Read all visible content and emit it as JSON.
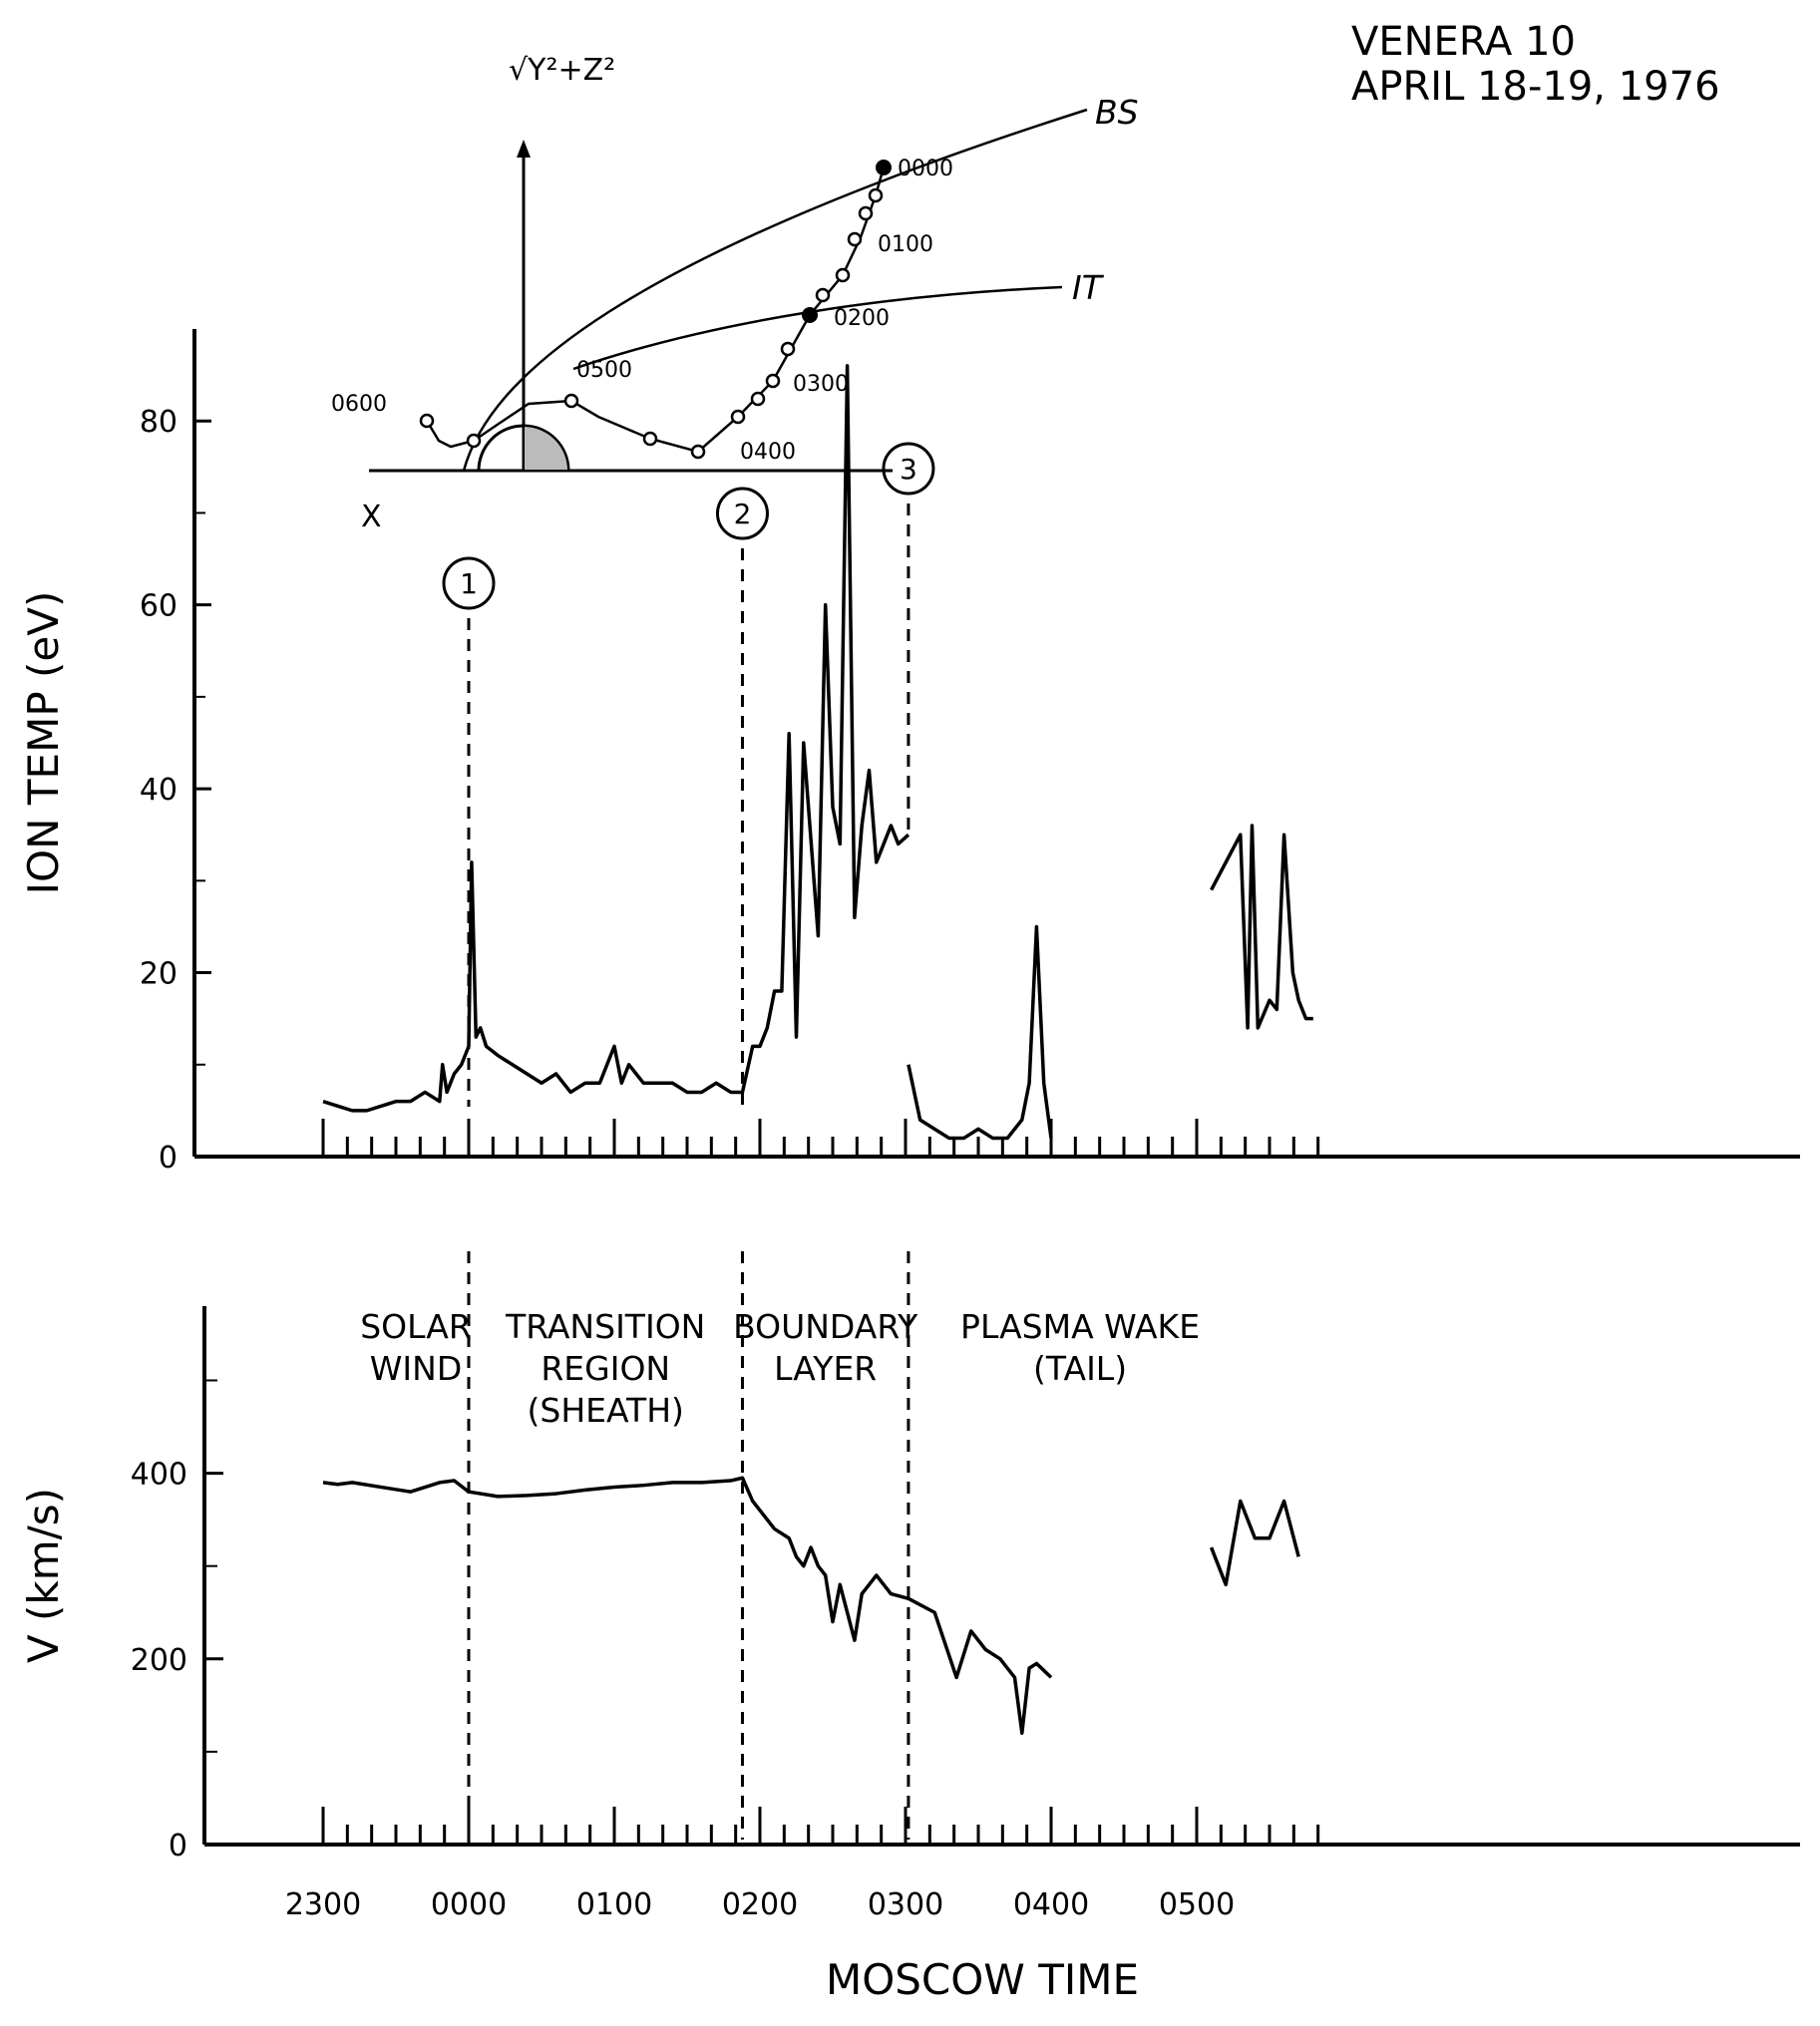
{
  "chart_data": [
    {
      "type": "line",
      "panel": "ion-temperature",
      "title": "VENERA 10",
      "subtitle": "APRIL 18-19, 1976",
      "xlabel": "MOSCOW TIME",
      "ylabel": "ION TEMP (eV)",
      "ylim": [
        0,
        90
      ],
      "yticks": [
        0,
        20,
        40,
        60,
        80
      ],
      "xlim": [
        -1.0,
        6.2
      ],
      "xtick_labels": [
        "2300",
        "0000",
        "0100",
        "0200",
        "0300",
        "0400",
        "0500"
      ],
      "grid": false,
      "markers": [
        {
          "label": "1",
          "x": 0.0
        },
        {
          "label": "2",
          "x": 1.88
        },
        {
          "label": "3",
          "x": 3.02
        }
      ],
      "series": [
        {
          "x": [
            -1.0,
            -0.9,
            -0.8,
            -0.7,
            -0.6,
            -0.5,
            -0.4,
            -0.3,
            -0.2,
            -0.18,
            -0.15,
            -0.1,
            -0.05,
            0.0,
            0.02,
            0.05,
            0.08,
            0.12,
            0.2,
            0.3,
            0.4,
            0.5,
            0.6,
            0.7,
            0.8,
            0.9,
            1.0,
            1.05,
            1.1,
            1.15,
            1.2,
            1.3,
            1.4,
            1.5,
            1.6,
            1.7,
            1.8,
            1.88,
            1.95,
            2.0,
            2.05,
            2.1,
            2.15,
            2.2,
            2.25,
            2.3,
            2.4,
            2.45,
            2.5,
            2.55,
            2.6,
            2.65,
            2.7,
            2.75,
            2.8,
            2.85,
            2.9,
            2.95,
            3.02
          ],
          "values": [
            6,
            5.5,
            5,
            5,
            5.5,
            6,
            6,
            7,
            6,
            10,
            7,
            9,
            10,
            12,
            32,
            13,
            14,
            12,
            11,
            10,
            9,
            8,
            9,
            7,
            8,
            8,
            12,
            8,
            10,
            9,
            8,
            8,
            8,
            7,
            7,
            8,
            7,
            7,
            12,
            12,
            14,
            18,
            18,
            46,
            13,
            45,
            24,
            60,
            38,
            34,
            86,
            26,
            36,
            42,
            32,
            34,
            36,
            34,
            35
          ]
        },
        {
          "x": [
            3.02,
            3.1,
            3.2,
            3.3,
            3.4,
            3.5,
            3.6,
            3.7,
            3.8,
            3.85,
            3.9,
            3.95,
            4.0
          ],
          "values": [
            10,
            4,
            3,
            2,
            2,
            3,
            2,
            2,
            4,
            8,
            25,
            8,
            2
          ]
        },
        {
          "x": [
            5.1,
            5.3,
            5.35,
            5.38,
            5.42,
            5.5,
            5.55,
            5.6,
            5.66,
            5.7,
            5.75,
            5.8
          ],
          "values": [
            29,
            35,
            14,
            36,
            14,
            17,
            16,
            35,
            20,
            17,
            15,
            15
          ]
        }
      ]
    },
    {
      "type": "line",
      "panel": "velocity",
      "xlabel": "MOSCOW TIME",
      "ylabel": "V (km/s)",
      "ylim": [
        0,
        580
      ],
      "yticks": [
        0,
        200,
        400
      ],
      "xlim": [
        -1.0,
        6.2
      ],
      "xtick_labels": [
        "2300",
        "0000",
        "0100",
        "0200",
        "0300",
        "0400",
        "0500"
      ],
      "grid": false,
      "boundaries": [
        0.0,
        1.88,
        3.02
      ],
      "regions": [
        {
          "lines": [
            "SOLAR",
            "WIND"
          ]
        },
        {
          "lines": [
            "TRANSITION",
            "REGION",
            "(SHEATH)"
          ]
        },
        {
          "lines": [
            "BOUNDARY",
            "LAYER"
          ]
        },
        {
          "lines": [
            "PLASMA WAKE",
            "(TAIL)"
          ]
        }
      ],
      "series": [
        {
          "x": [
            -1.0,
            -0.9,
            -0.8,
            -0.6,
            -0.4,
            -0.2,
            -0.1,
            0.0,
            0.2,
            0.4,
            0.6,
            0.8,
            1.0,
            1.2,
            1.4,
            1.6,
            1.8,
            1.88,
            1.95,
            2.0,
            2.1,
            2.2,
            2.25,
            2.3,
            2.35,
            2.4,
            2.45,
            2.5,
            2.55,
            2.6,
            2.65,
            2.7,
            2.75,
            2.8,
            2.9,
            3.02,
            3.2,
            3.35,
            3.45,
            3.55,
            3.65,
            3.75,
            3.8,
            3.85,
            3.9,
            4.0
          ],
          "values": [
            390,
            388,
            390,
            385,
            380,
            390,
            392,
            380,
            375,
            376,
            378,
            382,
            385,
            387,
            390,
            390,
            392,
            395,
            370,
            360,
            340,
            330,
            310,
            300,
            320,
            300,
            290,
            240,
            280,
            250,
            220,
            270,
            280,
            290,
            270,
            265,
            250,
            180,
            230,
            210,
            200,
            180,
            120,
            190,
            195,
            180
          ]
        },
        {
          "x": [
            5.1,
            5.2,
            5.3,
            5.4,
            5.5,
            5.6,
            5.7
          ],
          "values": [
            320,
            280,
            370,
            330,
            330,
            370,
            310
          ]
        }
      ]
    }
  ],
  "inset": {
    "ylabel": "√Y²+Z²",
    "xlabel": "X",
    "curve_labels": [
      "BS",
      "IT"
    ],
    "times": [
      "0000",
      "0100",
      "0200",
      "0300",
      "0400",
      "0500",
      "0600"
    ]
  }
}
